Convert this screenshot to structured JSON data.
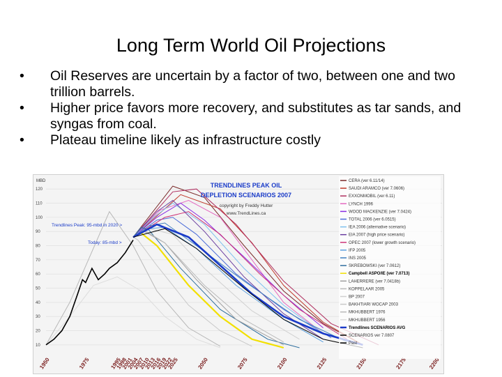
{
  "slide": {
    "title": "Long Term World Oil Projections",
    "bullets": [
      "Oil Reserves are uncertain by a factor of two, between one and two trillion barrels.",
      "Higher price favors more recovery, and substitutes as tar sands, and syngas from coal.",
      "Plateau timeline likely as infrastructure costly"
    ],
    "bullet_glyph": "•"
  },
  "chart_data": {
    "type": "line",
    "title": "TRENDLINES PEAK OIL DEPLETION SCENARIOS 2007",
    "copyright": "copyright by Freddy Hutter",
    "url": "www.TrendLines.ca",
    "ylabel": "MBD",
    "ylim": [
      7,
      126
    ],
    "xlim": [
      1950,
      2200
    ],
    "yticks": [
      10,
      20,
      30,
      40,
      50,
      60,
      70,
      80,
      90,
      100,
      110,
      120
    ],
    "xtick_labels": [
      "1950",
      "1975",
      "1995",
      "1998",
      "2001",
      "2004",
      "2007",
      "2010",
      "2013",
      "2016",
      "2019",
      "2022",
      "2025",
      "2050",
      "2075",
      "2100",
      "2125",
      "2150",
      "2175",
      "2200"
    ],
    "annotations": [
      "Trendlines Peak: 95-mbd in 2020 >",
      "Today: 85-mbd >"
    ],
    "series": [
      {
        "name": "CERA (ver 6.11/14)",
        "color": "#7a2a2a",
        "points": [
          [
            2005,
            86
          ],
          [
            2030,
            122
          ],
          [
            2050,
            114
          ],
          [
            2075,
            80
          ],
          [
            2100,
            48
          ],
          [
            2125,
            25
          ],
          [
            2150,
            10
          ]
        ]
      },
      {
        "name": "SAUDI ARAMCO (ver 7.0606)",
        "color": "#c0392b",
        "points": [
          [
            2005,
            86
          ],
          [
            2035,
            116
          ],
          [
            2060,
            106
          ],
          [
            2080,
            82
          ],
          [
            2100,
            52
          ],
          [
            2125,
            26
          ],
          [
            2150,
            10
          ]
        ]
      },
      {
        "name": "EXXONMOBIL (ver 6.11)",
        "color": "#b03060",
        "points": [
          [
            2005,
            86
          ],
          [
            2030,
            118
          ],
          [
            2045,
            120
          ],
          [
            2070,
            95
          ],
          [
            2100,
            55
          ],
          [
            2130,
            25
          ],
          [
            2160,
            10
          ]
        ]
      },
      {
        "name": "LYNCH 1996",
        "color": "#e56ac0",
        "points": [
          [
            2005,
            86
          ],
          [
            2022,
            105
          ],
          [
            2040,
            112
          ],
          [
            2060,
            100
          ],
          [
            2080,
            70
          ],
          [
            2100,
            40
          ],
          [
            2125,
            18
          ]
        ]
      },
      {
        "name": "WOOD MACKENZIE (ver 7.0424)",
        "color": "#8a2be2",
        "points": [
          [
            2005,
            86
          ],
          [
            2020,
            100
          ],
          [
            2035,
            110
          ],
          [
            2050,
            98
          ],
          [
            2075,
            72
          ],
          [
            2100,
            45
          ],
          [
            2125,
            22
          ]
        ]
      },
      {
        "name": "TOTAL 2006 (ver 6.0515)",
        "color": "#4b6cd8",
        "points": [
          [
            2005,
            86
          ],
          [
            2020,
            98
          ],
          [
            2030,
            100
          ],
          [
            2045,
            88
          ],
          [
            2070,
            60
          ],
          [
            2100,
            35
          ],
          [
            2130,
            15
          ]
        ]
      },
      {
        "name": "IEA 2006 (alternative scenario)",
        "color": "#7ec0ee",
        "points": [
          [
            2005,
            86
          ],
          [
            2018,
            100
          ],
          [
            2030,
            110
          ],
          [
            2050,
            95
          ],
          [
            2075,
            64
          ],
          [
            2100,
            38
          ],
          [
            2125,
            18
          ],
          [
            2150,
            10
          ]
        ]
      },
      {
        "name": "EIA 2007 (high price scenario)",
        "color": "#6b3fa0",
        "points": [
          [
            2005,
            86
          ],
          [
            2020,
            104
          ],
          [
            2030,
            112
          ],
          [
            2050,
            90
          ],
          [
            2075,
            58
          ],
          [
            2100,
            32
          ],
          [
            2125,
            14
          ]
        ]
      },
      {
        "name": "OPEC 2007 (lower growth scenario)",
        "color": "#cc3377",
        "points": [
          [
            2005,
            86
          ],
          [
            2025,
            100
          ],
          [
            2040,
            104
          ],
          [
            2060,
            88
          ],
          [
            2085,
            60
          ],
          [
            2110,
            35
          ],
          [
            2140,
            14
          ]
        ]
      },
      {
        "name": "IFP 2005",
        "color": "#5aa0e0",
        "points": [
          [
            2005,
            86
          ],
          [
            2015,
            92
          ],
          [
            2025,
            93
          ],
          [
            2045,
            78
          ],
          [
            2070,
            52
          ],
          [
            2100,
            28
          ],
          [
            2125,
            12
          ]
        ]
      },
      {
        "name": "INS 2005",
        "color": "#4080c0",
        "points": [
          [
            2005,
            86
          ],
          [
            2015,
            94
          ],
          [
            2025,
            96
          ],
          [
            2045,
            80
          ],
          [
            2075,
            55
          ],
          [
            2110,
            28
          ],
          [
            2140,
            12
          ]
        ]
      },
      {
        "name": "SKREBOWSKI (ver 7.0612)",
        "color": "#2f6f9f",
        "points": [
          [
            2005,
            86
          ],
          [
            2010,
            93
          ],
          [
            2015,
            91
          ],
          [
            2035,
            64
          ],
          [
            2060,
            35
          ],
          [
            2090,
            14
          ],
          [
            2110,
            8
          ]
        ]
      },
      {
        "name": "Campbell ASPO/IE (ver 7.0713)",
        "color": "#f2e000",
        "points": [
          [
            2005,
            86
          ],
          [
            2010,
            89
          ],
          [
            2020,
            80
          ],
          [
            2040,
            52
          ],
          [
            2060,
            30
          ],
          [
            2080,
            14
          ],
          [
            2100,
            8
          ]
        ]
      },
      {
        "name": "LAHERRERE (ver 7.0418b)",
        "color": "#a0a0a0",
        "points": [
          [
            2005,
            86
          ],
          [
            2012,
            90
          ],
          [
            2025,
            82
          ],
          [
            2045,
            56
          ],
          [
            2070,
            28
          ],
          [
            2100,
            10
          ]
        ]
      },
      {
        "name": "KOPPELAAR 2005",
        "color": "#bbbbbb",
        "points": [
          [
            2005,
            86
          ],
          [
            2012,
            91
          ],
          [
            2025,
            82
          ],
          [
            2050,
            52
          ],
          [
            2075,
            28
          ],
          [
            2100,
            12
          ]
        ]
      },
      {
        "name": "BP 2007",
        "color": "#d0d0d0",
        "points": [
          [
            2005,
            86
          ],
          [
            2015,
            92
          ],
          [
            2030,
            88
          ],
          [
            2050,
            64
          ],
          [
            2080,
            34
          ],
          [
            2110,
            14
          ]
        ]
      },
      {
        "name": "BAKHTIARI WOCAP 2003",
        "color": "#c8c8c8",
        "points": [
          [
            2005,
            86
          ],
          [
            2008,
            84
          ],
          [
            2020,
            66
          ],
          [
            2040,
            38
          ],
          [
            2060,
            20
          ],
          [
            2080,
            9
          ]
        ]
      },
      {
        "name": "MKHUBBERT 1976",
        "color": "#b8b8b8",
        "points": [
          [
            1950,
            10
          ],
          [
            1965,
            40
          ],
          [
            1990,
            104
          ],
          [
            2005,
            80
          ],
          [
            2020,
            48
          ],
          [
            2040,
            22
          ],
          [
            2060,
            9
          ]
        ]
      },
      {
        "name": "MKHUBBERT 1956",
        "color": "#dddddd",
        "points": [
          [
            1950,
            10
          ],
          [
            1965,
            30
          ],
          [
            1980,
            52
          ],
          [
            1995,
            58
          ],
          [
            2010,
            48
          ],
          [
            2025,
            30
          ],
          [
            2045,
            14
          ],
          [
            2060,
            8
          ]
        ]
      },
      {
        "name": "Trendlines SCENARIOS AVG",
        "color": "#1a3bc8",
        "points": [
          [
            2005,
            86
          ],
          [
            2020,
            95
          ],
          [
            2040,
            86
          ],
          [
            2060,
            66
          ],
          [
            2080,
            46
          ],
          [
            2100,
            30
          ],
          [
            2125,
            18
          ],
          [
            2150,
            10
          ]
        ]
      },
      {
        "name": "SCENARIOS ver 7.0807",
        "color": "#000000",
        "points": [
          [
            2005,
            86
          ],
          [
            2025,
            92
          ],
          [
            2045,
            78
          ],
          [
            2075,
            50
          ],
          [
            2100,
            28
          ],
          [
            2125,
            14
          ],
          [
            2150,
            8
          ]
        ]
      },
      {
        "name": "Past",
        "color": "#000000",
        "points": [
          [
            1950,
            10
          ],
          [
            1955,
            14
          ],
          [
            1960,
            20
          ],
          [
            1965,
            30
          ],
          [
            1970,
            46
          ],
          [
            1973,
            56
          ],
          [
            1975,
            54
          ],
          [
            1979,
            64
          ],
          [
            1983,
            56
          ],
          [
            1987,
            60
          ],
          [
            1990,
            64
          ],
          [
            1995,
            68
          ],
          [
            2000,
            75
          ],
          [
            2005,
            84
          ]
        ]
      }
    ]
  }
}
